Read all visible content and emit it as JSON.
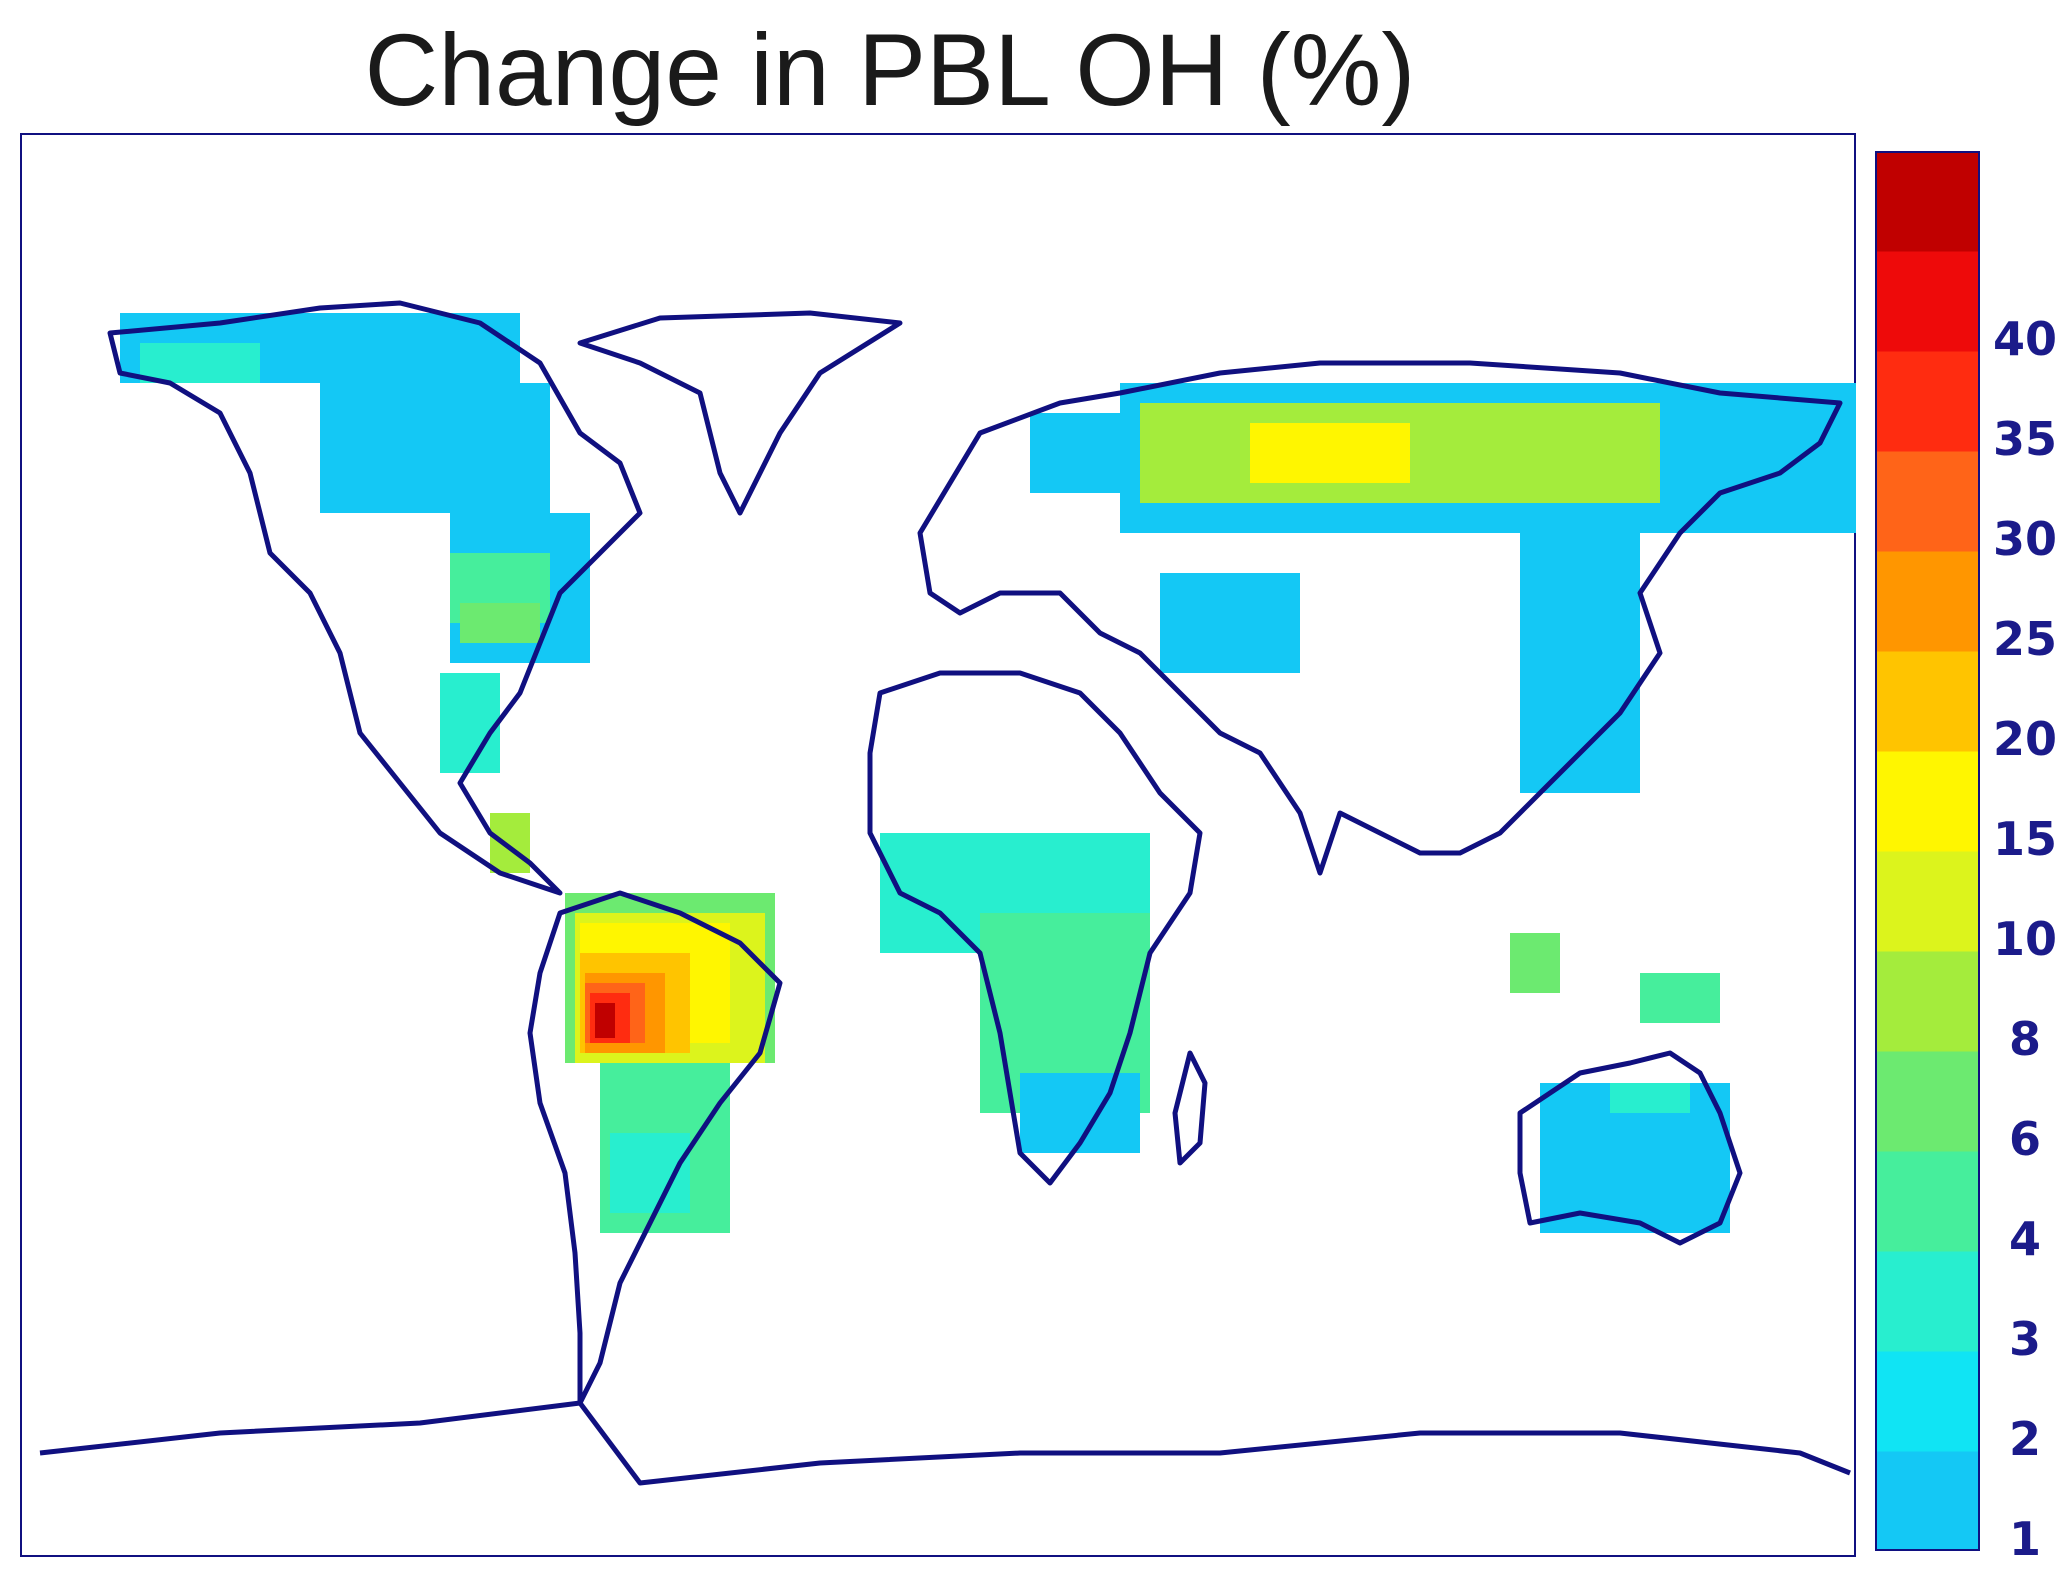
{
  "title": "Change in PBL OH (%)",
  "colorbar": {
    "labels": [
      "1",
      "2",
      "3",
      "4",
      "6",
      "8",
      "10",
      "15",
      "20",
      "25",
      "30",
      "35",
      "40"
    ],
    "colors": [
      "#14c8f5",
      "#10e4f4",
      "#28eecf",
      "#46ee9c",
      "#6cea70",
      "#a4ec3c",
      "#dcf41c",
      "#fff600",
      "#ffc400",
      "#ff9600",
      "#ff6418",
      "#ff2c10",
      "#ee0a0a",
      "#c00000"
    ]
  },
  "colors": {
    "coastline": "#101080",
    "frame": "#101080"
  }
}
